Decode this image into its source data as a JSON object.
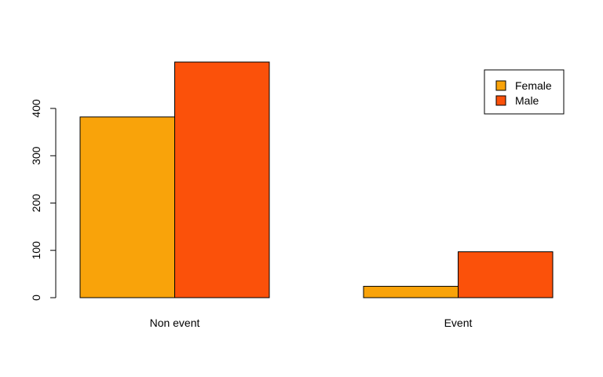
{
  "chart_data": {
    "type": "bar",
    "title": "",
    "xlabel": "",
    "ylabel": "",
    "categories": [
      "Non event",
      "Event"
    ],
    "series": [
      {
        "name": "Female",
        "color": "#F9A30A",
        "values": [
          382,
          24
        ]
      },
      {
        "name": "Male",
        "color": "#FB510A",
        "values": [
          498,
          97
        ]
      }
    ],
    "ylim": [
      0,
      498
    ],
    "yticks": [
      0,
      100,
      200,
      300,
      400
    ],
    "grid": false,
    "legend_position": "top-right"
  }
}
